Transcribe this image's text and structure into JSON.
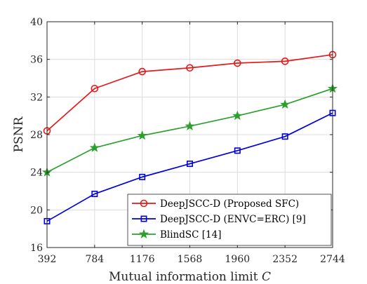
{
  "chart_data": {
    "type": "line",
    "xlabel": "Mutual information limit",
    "xlabel_var": "C",
    "ylabel": "PSNR",
    "x": [
      392,
      784,
      1176,
      1568,
      1960,
      2352,
      2744
    ],
    "xticks": [
      "392",
      "784",
      "1176",
      "1568",
      "1960",
      "2352",
      "2744"
    ],
    "xlim": [
      392,
      2744
    ],
    "ylim": [
      16,
      40
    ],
    "yticks": [
      "16",
      "20",
      "24",
      "28",
      "32",
      "36",
      "40"
    ],
    "ytick_values": [
      16,
      20,
      24,
      28,
      32,
      36,
      40
    ],
    "grid": true,
    "legend_position": "bottom-right",
    "series": [
      {
        "name": "DeepJSCC-D (Proposed SFC)",
        "color": "#e31a1c",
        "marker": "circle",
        "values": [
          28.4,
          32.9,
          34.7,
          35.1,
          35.6,
          35.8,
          36.5
        ]
      },
      {
        "name": "DeepJSCC-D (ENVC=ERC) [9]",
        "color": "#0000e0",
        "marker": "square",
        "values": [
          18.8,
          21.7,
          23.5,
          24.9,
          26.3,
          27.8,
          30.3
        ]
      },
      {
        "name": "BlindSC [14]",
        "color": "#2ca02c",
        "marker": "star",
        "values": [
          24.0,
          26.6,
          27.9,
          28.9,
          30.0,
          31.2,
          32.9
        ]
      }
    ]
  }
}
